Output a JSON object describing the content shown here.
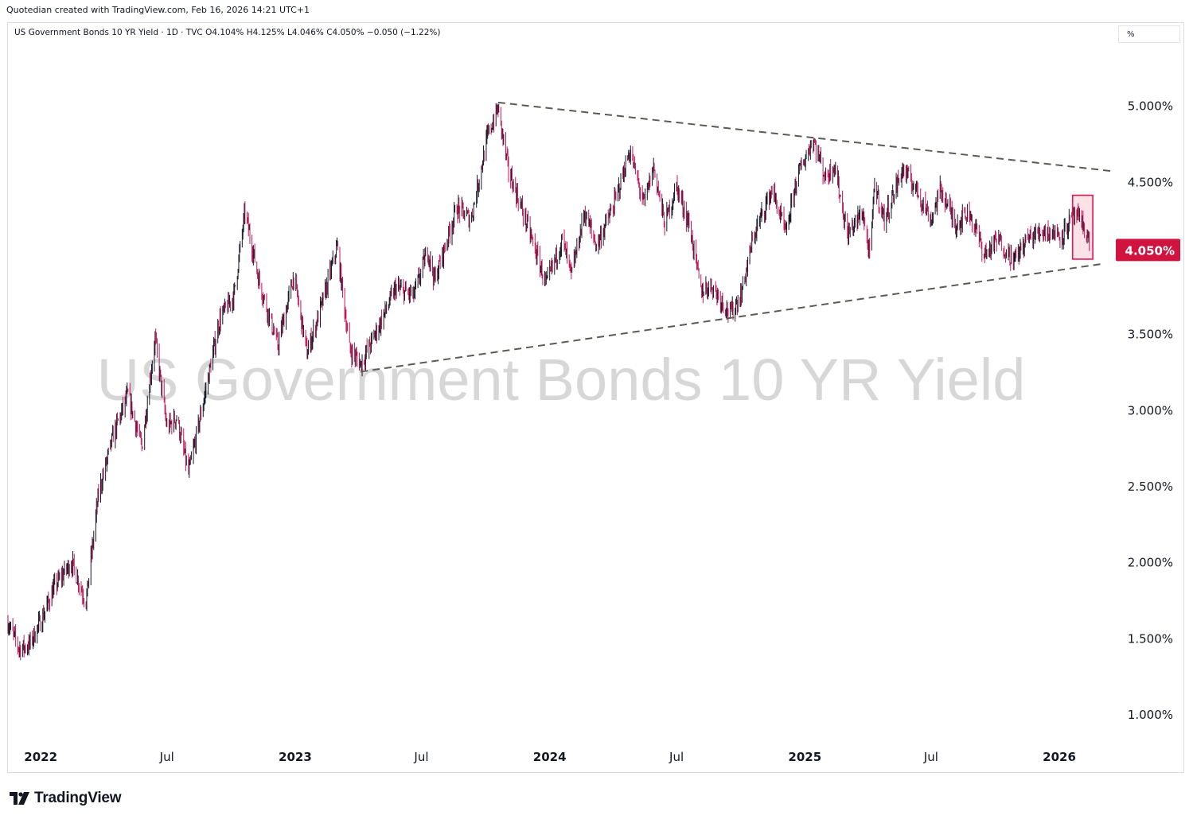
{
  "header": {
    "caption": "Quotedian created with TradingView.com, Feb 16, 2026 14:21 UTC+1",
    "symbol_line": "US Government Bonds 10 YR Yield · 1D · TVC  O4.104%  H4.125%  L4.046%  C4.050%  −0.050 (−1.22%)",
    "unit_label": "%"
  },
  "footer": {
    "brand": "TradingView"
  },
  "colors": {
    "up": "#131722",
    "down": "#c2185b",
    "price_tag": "#d1133f",
    "trendline": "#5d5a55",
    "highlight": "#e3154f"
  },
  "chart_data": {
    "type": "candlestick",
    "watermark": "US Government Bonds 10 YR Yield",
    "x_range": [
      "2021-11-15",
      "2026-03-15"
    ],
    "ylim": [
      0.78,
      5.38
    ],
    "y_ticks": [
      "5.000%",
      "4.500%",
      "3.500%",
      "3.000%",
      "2.500%",
      "2.000%",
      "1.500%",
      "1.000%"
    ],
    "x_ticks": [
      {
        "label": "2022",
        "date": "2022-01-01",
        "bold": true
      },
      {
        "label": "Jul",
        "date": "2022-07-01",
        "bold": false
      },
      {
        "label": "2023",
        "date": "2023-01-01",
        "bold": true
      },
      {
        "label": "Jul",
        "date": "2023-07-01",
        "bold": false
      },
      {
        "label": "2024",
        "date": "2024-01-01",
        "bold": true
      },
      {
        "label": "Jul",
        "date": "2024-07-01",
        "bold": false
      },
      {
        "label": "2025",
        "date": "2025-01-01",
        "bold": true
      },
      {
        "label": "Jul",
        "date": "2025-07-01",
        "bold": false
      },
      {
        "label": "2026",
        "date": "2026-01-01",
        "bold": true
      }
    ],
    "last_price": {
      "label": "4.050%",
      "value": 4.05
    },
    "trendlines": [
      {
        "name": "resistance",
        "from": [
          "2023-10-19",
          5.02
        ],
        "to": [
          "2026-03-15",
          4.57
        ]
      },
      {
        "name": "support",
        "from": [
          "2023-04-05",
          3.25
        ],
        "to": [
          "2026-03-05",
          3.96
        ]
      }
    ],
    "highlight_box": {
      "from": "2026-01-20",
      "to": "2026-02-18",
      "y_high": 4.41,
      "y_low": 3.99
    },
    "series": [
      {
        "date": "2021-11-15",
        "value": 1.6
      },
      {
        "date": "2021-12-01",
        "value": 1.43
      },
      {
        "date": "2021-12-15",
        "value": 1.45
      },
      {
        "date": "2022-01-03",
        "value": 1.63
      },
      {
        "date": "2022-01-20",
        "value": 1.83
      },
      {
        "date": "2022-02-14",
        "value": 2.0
      },
      {
        "date": "2022-03-07",
        "value": 1.74
      },
      {
        "date": "2022-03-25",
        "value": 2.45
      },
      {
        "date": "2022-04-15",
        "value": 2.83
      },
      {
        "date": "2022-05-06",
        "value": 3.1
      },
      {
        "date": "2022-05-26",
        "value": 2.75
      },
      {
        "date": "2022-06-14",
        "value": 3.47
      },
      {
        "date": "2022-07-01",
        "value": 2.88
      },
      {
        "date": "2022-07-15",
        "value": 2.95
      },
      {
        "date": "2022-08-01",
        "value": 2.58
      },
      {
        "date": "2022-08-20",
        "value": 3.0
      },
      {
        "date": "2022-09-15",
        "value": 3.6
      },
      {
        "date": "2022-10-05",
        "value": 3.75
      },
      {
        "date": "2022-10-21",
        "value": 4.3
      },
      {
        "date": "2022-11-10",
        "value": 3.85
      },
      {
        "date": "2022-12-07",
        "value": 3.42
      },
      {
        "date": "2022-12-30",
        "value": 3.88
      },
      {
        "date": "2023-01-18",
        "value": 3.37
      },
      {
        "date": "2023-02-10",
        "value": 3.72
      },
      {
        "date": "2023-03-02",
        "value": 4.07
      },
      {
        "date": "2023-03-20",
        "value": 3.4
      },
      {
        "date": "2023-04-05",
        "value": 3.3
      },
      {
        "date": "2023-05-01",
        "value": 3.55
      },
      {
        "date": "2023-05-25",
        "value": 3.8
      },
      {
        "date": "2023-06-20",
        "value": 3.75
      },
      {
        "date": "2023-07-10",
        "value": 4.05
      },
      {
        "date": "2023-07-20",
        "value": 3.85
      },
      {
        "date": "2023-08-21",
        "value": 4.33
      },
      {
        "date": "2023-09-10",
        "value": 4.25
      },
      {
        "date": "2023-10-04",
        "value": 4.8
      },
      {
        "date": "2023-10-19",
        "value": 4.98
      },
      {
        "date": "2023-11-03",
        "value": 4.57
      },
      {
        "date": "2023-12-01",
        "value": 4.2
      },
      {
        "date": "2023-12-27",
        "value": 3.82
      },
      {
        "date": "2024-01-19",
        "value": 4.12
      },
      {
        "date": "2024-02-01",
        "value": 3.88
      },
      {
        "date": "2024-02-20",
        "value": 4.3
      },
      {
        "date": "2024-03-08",
        "value": 4.08
      },
      {
        "date": "2024-04-01",
        "value": 4.33
      },
      {
        "date": "2024-04-25",
        "value": 4.7
      },
      {
        "date": "2024-05-15",
        "value": 4.35
      },
      {
        "date": "2024-05-29",
        "value": 4.6
      },
      {
        "date": "2024-06-14",
        "value": 4.22
      },
      {
        "date": "2024-07-01",
        "value": 4.47
      },
      {
        "date": "2024-07-20",
        "value": 4.2
      },
      {
        "date": "2024-08-05",
        "value": 3.78
      },
      {
        "date": "2024-08-20",
        "value": 3.82
      },
      {
        "date": "2024-09-16",
        "value": 3.63
      },
      {
        "date": "2024-10-01",
        "value": 3.75
      },
      {
        "date": "2024-10-20",
        "value": 4.15
      },
      {
        "date": "2024-11-15",
        "value": 4.45
      },
      {
        "date": "2024-12-05",
        "value": 4.15
      },
      {
        "date": "2024-12-20",
        "value": 4.52
      },
      {
        "date": "2025-01-13",
        "value": 4.78
      },
      {
        "date": "2025-01-31",
        "value": 4.52
      },
      {
        "date": "2025-02-12",
        "value": 4.62
      },
      {
        "date": "2025-03-03",
        "value": 4.15
      },
      {
        "date": "2025-03-25",
        "value": 4.3
      },
      {
        "date": "2025-04-04",
        "value": 4.0
      },
      {
        "date": "2025-04-11",
        "value": 4.48
      },
      {
        "date": "2025-04-25",
        "value": 4.25
      },
      {
        "date": "2025-05-21",
        "value": 4.58
      },
      {
        "date": "2025-06-10",
        "value": 4.45
      },
      {
        "date": "2025-07-01",
        "value": 4.25
      },
      {
        "date": "2025-07-15",
        "value": 4.45
      },
      {
        "date": "2025-08-05",
        "value": 4.22
      },
      {
        "date": "2025-08-25",
        "value": 4.3
      },
      {
        "date": "2025-09-16",
        "value": 4.02
      },
      {
        "date": "2025-10-05",
        "value": 4.12
      },
      {
        "date": "2025-10-28",
        "value": 3.98
      },
      {
        "date": "2025-11-15",
        "value": 4.12
      },
      {
        "date": "2025-12-10",
        "value": 4.18
      },
      {
        "date": "2026-01-05",
        "value": 4.15
      },
      {
        "date": "2026-01-22",
        "value": 4.28
      },
      {
        "date": "2026-02-05",
        "value": 4.21
      },
      {
        "date": "2026-02-16",
        "value": 4.05
      }
    ]
  }
}
